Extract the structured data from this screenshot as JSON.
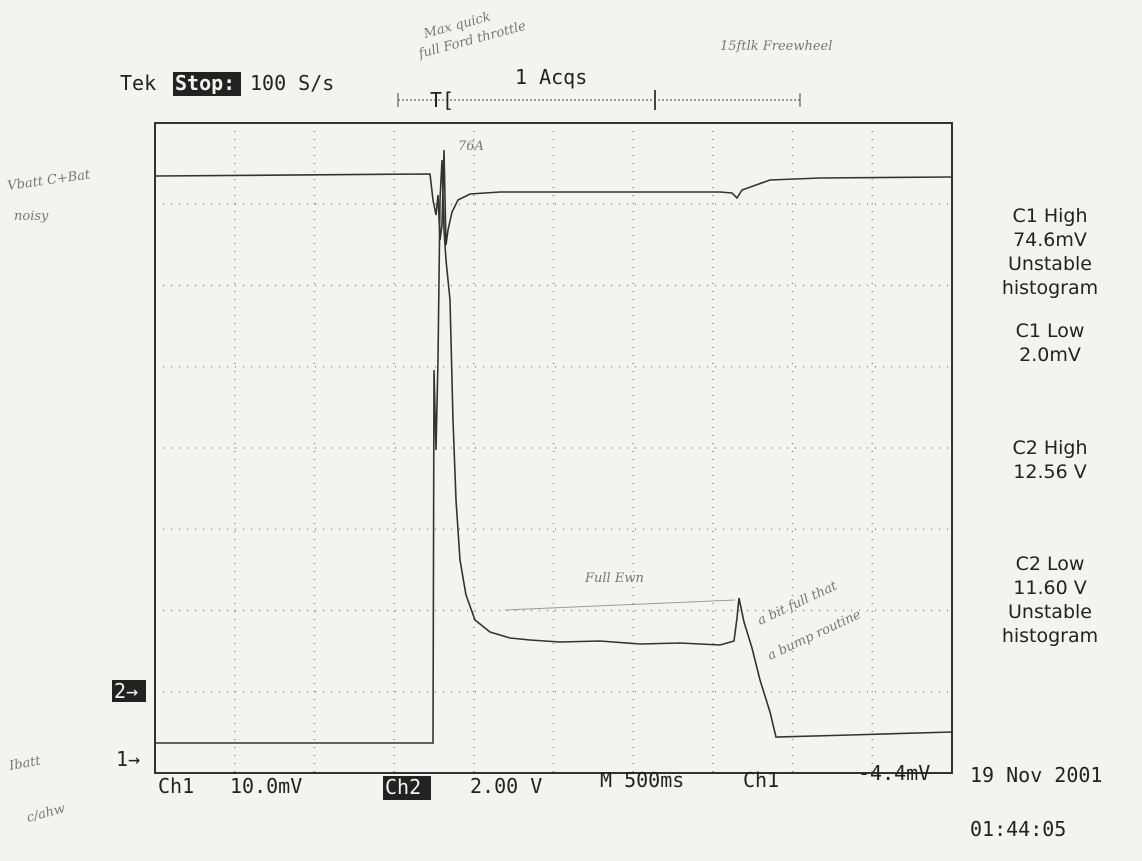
{
  "header": {
    "brand": "Tek",
    "state": "Stop:",
    "rate": "100 S/s",
    "acquisitions": "1 Acqs",
    "trigger_marker": "T["
  },
  "measurements": [
    {
      "lines": [
        "C1 High",
        "74.6mV",
        "Unstable",
        "histogram"
      ]
    },
    {
      "lines": [
        "C1 Low",
        "2.0mV"
      ]
    },
    {
      "lines": [
        "C2 High",
        "12.56 V"
      ]
    },
    {
      "lines": [
        "C2 Low",
        "11.60 V",
        "Unstable",
        "histogram"
      ]
    }
  ],
  "markers": {
    "ch2": "2→",
    "ch1": "1→"
  },
  "footer": {
    "ch1": "Ch1",
    "ch1_scale": "10.0mV",
    "ch2": "Ch2",
    "ch2_scale": "2.00 V",
    "timebase": "M 500ms",
    "trigger_source": "Ch1",
    "trigger_level": "-4.4mV",
    "date": "19 Nov 2001",
    "time": "01:44:05"
  },
  "annotations": {
    "top_left": [
      "Max quick",
      "full Ford throttle"
    ],
    "top_right": "15ftlk Freewheel",
    "v_label": [
      "Vbatt C+Bat",
      "noisy"
    ],
    "peak": "76A",
    "mid": "Full Ewn",
    "right": [
      "a bit full that",
      "a bump routine"
    ],
    "i_label": [
      "Ibatt",
      "c/ahw"
    ]
  }
}
